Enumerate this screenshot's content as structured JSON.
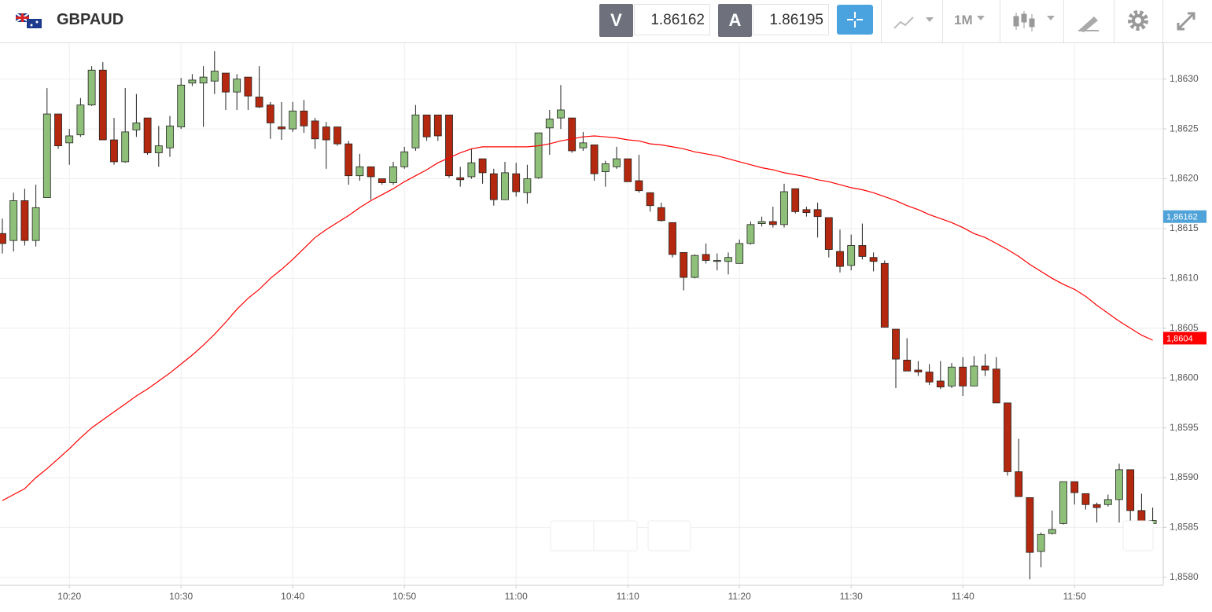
{
  "header": {
    "symbol": "GBPAUD",
    "bid_label": "V",
    "bid": "1.86162",
    "ask_label": "A",
    "ask": "1.86195",
    "timeframe": "1M"
  },
  "chart_data": {
    "type": "candlestick",
    "categories": [
      null,
      null,
      null,
      null,
      null,
      null,
      "10:20",
      null,
      null,
      null,
      null,
      null,
      null,
      null,
      null,
      null,
      "10:30",
      null,
      null,
      null,
      null,
      null,
      null,
      null,
      null,
      null,
      "10:40",
      null,
      null,
      null,
      null,
      null,
      null,
      null,
      null,
      null,
      "10:50",
      null,
      null,
      null,
      null,
      null,
      null,
      null,
      null,
      null,
      "11:00",
      null,
      null,
      null,
      null,
      null,
      null,
      null,
      null,
      null,
      "11:10",
      null,
      null,
      null,
      null,
      null,
      null,
      null,
      null,
      null,
      "11:20",
      null,
      null,
      null,
      null,
      null,
      null,
      null,
      null,
      null,
      "11:30",
      null,
      null,
      null,
      null,
      null,
      null,
      null,
      null,
      null,
      "11:40",
      null,
      null,
      null,
      null,
      null,
      null,
      null,
      null,
      null,
      "11:50",
      null,
      null,
      null,
      null,
      null,
      null,
      null
    ],
    "open": [
      1.86145,
      1.86138,
      1.86178,
      1.86138,
      1.86181,
      1.86265,
      1.86236,
      1.86244,
      1.86274,
      1.86309,
      1.86239,
      1.86217,
      1.86249,
      1.86261,
      1.86226,
      1.86231,
      1.86252,
      1.86296,
      1.86296,
      1.86298,
      1.86306,
      1.86287,
      1.86302,
      1.86282,
      1.86274,
      1.86252,
      1.8625,
      1.86268,
      1.86258,
      1.86252,
      1.86252,
      1.86235,
      1.86203,
      1.86212,
      1.862,
      1.86196,
      1.86212,
      1.86231,
      1.86264,
      1.86264,
      1.86264,
      1.86201,
      1.86202,
      1.8622,
      1.86205,
      1.86179,
      1.86205,
      1.86186,
      1.86201,
      1.86251,
      1.86261,
      1.86261,
      1.86231,
      1.86234,
      1.86207,
      1.86212,
      1.8622,
      1.86198,
      1.86186,
      1.86171,
      1.86156,
      1.86126,
      1.86101,
      1.86124,
      1.86117,
      1.86117,
      1.86115,
      1.86135,
      1.86155,
      1.86157,
      1.86154,
      1.8619,
      1.86169,
      1.86169,
      1.86161,
      1.86127,
      1.86113,
      1.86133,
      1.86121,
      1.86115,
      1.86049,
      1.86018,
      1.86008,
      1.86006,
      1.85997,
      1.85992,
      1.86011,
      1.85992,
      1.86012,
      1.86009,
      1.85975,
      1.85906,
      1.8588,
      1.85826,
      1.85844,
      1.85854,
      1.85896,
      1.85884,
      1.85873,
      1.85873,
      1.85878,
      1.85908,
      1.85867,
      1.85854
    ],
    "high": [
      1.8616,
      1.86186,
      1.8619,
      1.86194,
      1.86291,
      1.86265,
      1.8625,
      1.86281,
      1.86313,
      1.86317,
      1.86261,
      1.86291,
      1.86285,
      1.86261,
      1.86253,
      1.86263,
      1.86301,
      1.86305,
      1.86313,
      1.86328,
      1.86306,
      1.86305,
      1.86302,
      1.86313,
      1.86277,
      1.86277,
      1.86277,
      1.86279,
      1.86261,
      1.86257,
      1.86252,
      1.86238,
      1.86225,
      1.86212,
      1.862,
      1.86217,
      1.86232,
      1.86274,
      1.86264,
      1.86264,
      1.86264,
      1.86212,
      1.8623,
      1.8622,
      1.8621,
      1.86217,
      1.86216,
      1.86214,
      1.86246,
      1.86269,
      1.86294,
      1.86261,
      1.86247,
      1.86234,
      1.86218,
      1.86232,
      1.8622,
      1.86224,
      1.86186,
      1.86176,
      1.86156,
      1.86126,
      1.86124,
      1.86135,
      1.86125,
      1.86126,
      1.86139,
      1.86157,
      1.86162,
      1.86172,
      1.86195,
      1.8619,
      1.86172,
      1.86176,
      1.86161,
      1.86149,
      1.86144,
      1.86155,
      1.86126,
      1.86118,
      1.86049,
      1.8604,
      1.86017,
      1.86014,
      1.86017,
      1.86015,
      1.86021,
      1.86022,
      1.86024,
      1.86021,
      1.85975,
      1.85939,
      1.8588,
      1.85845,
      1.85867,
      1.85896,
      1.85896,
      1.85884,
      1.85875,
      1.85883,
      1.85914,
      1.85908,
      1.85884,
      1.8587
    ],
    "low": [
      1.86125,
      1.86127,
      1.86133,
      1.86132,
      1.86181,
      1.8623,
      1.86214,
      1.86242,
      1.86273,
      1.86239,
      1.86214,
      1.86216,
      1.86242,
      1.86224,
      1.86212,
      1.86222,
      1.8625,
      1.86293,
      1.86252,
      1.86285,
      1.86269,
      1.86269,
      1.86269,
      1.86271,
      1.8624,
      1.86239,
      1.86247,
      1.86246,
      1.8623,
      1.8621,
      1.86233,
      1.86194,
      1.86198,
      1.86179,
      1.86194,
      1.86194,
      1.8621,
      1.86228,
      1.86238,
      1.86238,
      1.86201,
      1.86192,
      1.862,
      1.86195,
      1.86173,
      1.86179,
      1.86182,
      1.86175,
      1.862,
      1.86224,
      1.8625,
      1.86226,
      1.86228,
      1.86198,
      1.86192,
      1.8621,
      1.86197,
      1.86186,
      1.86167,
      1.86157,
      1.86121,
      1.86088,
      1.861,
      1.86115,
      1.86108,
      1.86104,
      1.86115,
      1.86134,
      1.86152,
      1.86151,
      1.86151,
      1.86165,
      1.86162,
      1.86141,
      1.86121,
      1.86106,
      1.86108,
      1.86119,
      1.86107,
      1.86051,
      1.8599,
      1.86007,
      1.86002,
      1.85993,
      1.85989,
      1.8599,
      1.85982,
      1.85992,
      1.86002,
      1.85975,
      1.85902,
      1.85881,
      1.85798,
      1.8581,
      1.85843,
      1.85853,
      1.85873,
      1.85868,
      1.85855,
      1.85871,
      1.85855,
      1.85854,
      1.85853,
      1.85854
    ],
    "close": [
      1.86135,
      1.86178,
      1.86138,
      1.86171,
      1.86265,
      1.86233,
      1.86243,
      1.86274,
      1.86309,
      1.86239,
      1.86217,
      1.86247,
      1.86256,
      1.86226,
      1.86233,
      1.86253,
      1.86294,
      1.86299,
      1.86302,
      1.86308,
      1.86287,
      1.863,
      1.86283,
      1.86272,
      1.86256,
      1.8625,
      1.86268,
      1.86253,
      1.8624,
      1.86239,
      1.86235,
      1.86203,
      1.86212,
      1.86202,
      1.86196,
      1.86212,
      1.86227,
      1.86264,
      1.86242,
      1.86243,
      1.86203,
      1.86199,
      1.86216,
      1.86206,
      1.86179,
      1.86206,
      1.86187,
      1.862,
      1.86246,
      1.8626,
      1.86269,
      1.86228,
      1.86236,
      1.86205,
      1.86215,
      1.8622,
      1.86197,
      1.86188,
      1.86173,
      1.86158,
      1.86124,
      1.86101,
      1.86123,
      1.86118,
      1.86118,
      1.86121,
      1.86135,
      1.86154,
      1.86157,
      1.86154,
      1.86187,
      1.86167,
      1.86166,
      1.86162,
      1.86129,
      1.86112,
      1.86133,
      1.86122,
      1.86117,
      1.86051,
      1.86019,
      1.86007,
      1.86006,
      1.85996,
      1.85991,
      1.86011,
      1.85992,
      1.86012,
      1.86008,
      1.85975,
      1.85906,
      1.85881,
      1.85825,
      1.85843,
      1.85848,
      1.85896,
      1.85885,
      1.85873,
      1.8587,
      1.85878,
      1.85908,
      1.85867,
      1.85853,
      1.85857
    ],
    "up_color": "#8fc07a",
    "down_color": "#b3280e",
    "ma": {
      "color": "#ff0000",
      "values": [
        1.85877,
        1.85883,
        1.85889,
        1.859,
        1.85909,
        1.85919,
        1.85929,
        1.8594,
        1.8595,
        1.85958,
        1.85966,
        1.85974,
        1.85982,
        1.85989,
        1.85997,
        1.86005,
        1.86014,
        1.86023,
        1.86033,
        1.86044,
        1.86056,
        1.86069,
        1.8608,
        1.86089,
        1.861,
        1.86109,
        1.86119,
        1.8613,
        1.86141,
        1.86149,
        1.86156,
        1.86163,
        1.86171,
        1.86178,
        1.86184,
        1.8619,
        1.86197,
        1.86203,
        1.86209,
        1.86216,
        1.86221,
        1.86226,
        1.8623,
        1.86232,
        1.86232,
        1.86232,
        1.86232,
        1.86232,
        1.86233,
        1.86235,
        1.86238,
        1.8624,
        1.86242,
        1.86243,
        1.86242,
        1.86241,
        1.86239,
        1.86238,
        1.86235,
        1.86234,
        1.86232,
        1.8623,
        1.86227,
        1.86225,
        1.86223,
        1.8622,
        1.86217,
        1.86214,
        1.86211,
        1.86209,
        1.86206,
        1.86204,
        1.86202,
        1.86199,
        1.86197,
        1.86194,
        1.86191,
        1.86189,
        1.86186,
        1.86182,
        1.86178,
        1.86173,
        1.86169,
        1.86164,
        1.8616,
        1.86156,
        1.86151,
        1.86145,
        1.86141,
        1.86135,
        1.86129,
        1.86122,
        1.86114,
        1.86107,
        1.861,
        1.86094,
        1.86089,
        1.86082,
        1.86073,
        1.86065,
        1.86057,
        1.8605,
        1.86043,
        1.86038
      ]
    },
    "price_markers": [
      {
        "value": 1.86162,
        "label": "1,86162",
        "color": "#4fa3d9"
      },
      {
        "value": 1.8604,
        "label": "1,8604",
        "color": "#ff0000"
      }
    ],
    "ylim": [
      1.85792,
      1.86336
    ],
    "yticks": [
      {
        "value": 1.858,
        "label": "1,8580"
      },
      {
        "value": 1.8585,
        "label": "1,8585"
      },
      {
        "value": 1.859,
        "label": "1,8590"
      },
      {
        "value": 1.8595,
        "label": "1,8595"
      },
      {
        "value": 1.86,
        "label": "1,8600"
      },
      {
        "value": 1.8605,
        "label": "1,8605"
      },
      {
        "value": 1.861,
        "label": "1,8610"
      },
      {
        "value": 1.8615,
        "label": "1,8615"
      },
      {
        "value": 1.862,
        "label": "1,8620"
      },
      {
        "value": 1.8625,
        "label": "1,8625"
      },
      {
        "value": 1.863,
        "label": "1,8630"
      }
    ],
    "grid": true
  }
}
